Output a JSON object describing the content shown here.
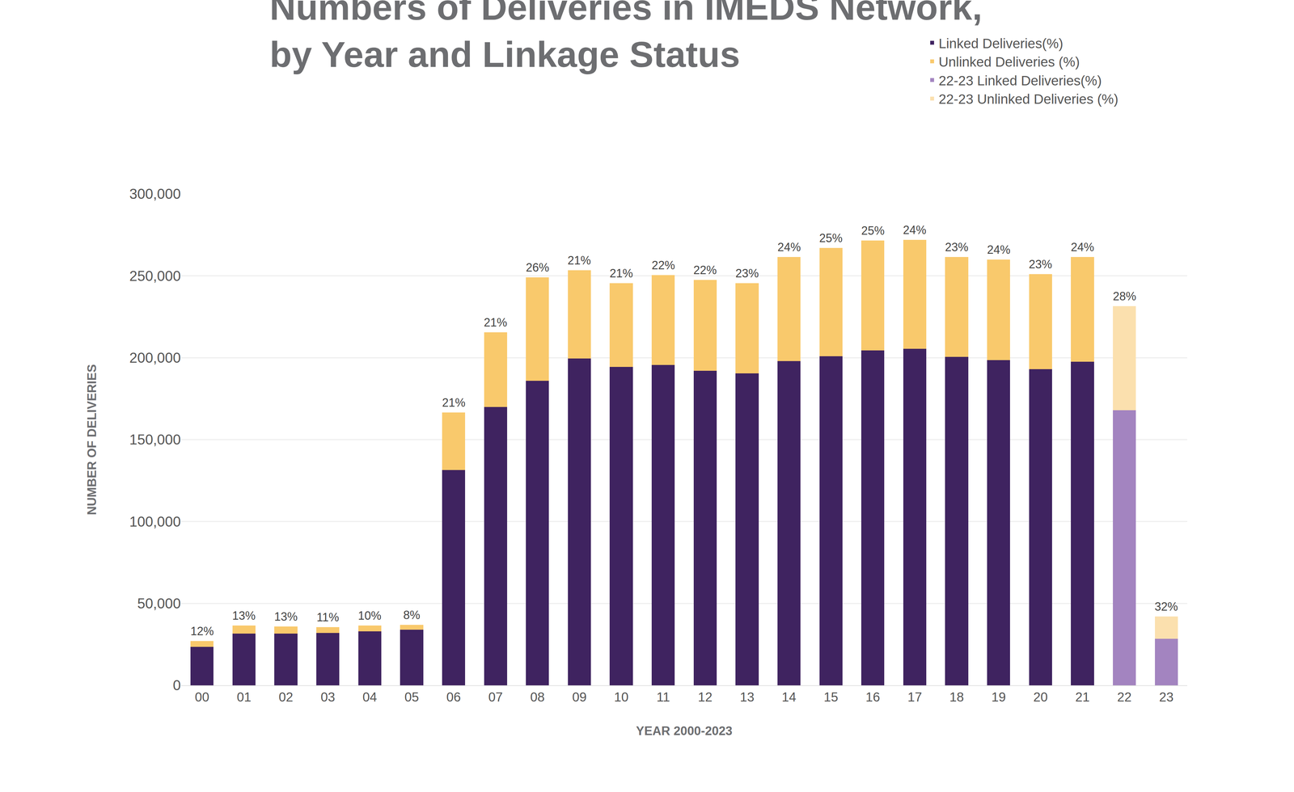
{
  "chart_data": {
    "type": "bar",
    "title": "Numbers of Deliveries in IMEDS Network, by Year and Linkage Status",
    "x_label": "YEAR 2000-2023",
    "y_label": "NUMBER OF DELIVERIES",
    "categories": [
      "00",
      "01",
      "02",
      "03",
      "04",
      "05",
      "06",
      "07",
      "08",
      "09",
      "10",
      "11",
      "12",
      "13",
      "14",
      "15",
      "16",
      "17",
      "18",
      "19",
      "20",
      "21",
      "22",
      "23"
    ],
    "series": [
      {
        "name": "Linked Deliveries(%)",
        "color": "#3f2360",
        "values": [
          23500,
          31500,
          31500,
          32000,
          33000,
          34000,
          131500,
          170000,
          186000,
          199500,
          194500,
          195500,
          192000,
          190500,
          198000,
          201000,
          204500,
          205500,
          200500,
          198500,
          193000,
          197500,
          null,
          null
        ]
      },
      {
        "name": "Unlinked Deliveries (%)",
        "color": "#f9c96c",
        "values": [
          3500,
          5000,
          4500,
          3500,
          3500,
          3000,
          35000,
          45500,
          63000,
          54000,
          51000,
          55000,
          55500,
          55000,
          63500,
          66000,
          67000,
          66500,
          61000,
          61500,
          58000,
          64000,
          null,
          null
        ]
      },
      {
        "name": "22-23 Linked Deliveries(%)",
        "color": "#a384c0",
        "values": [
          null,
          null,
          null,
          null,
          null,
          null,
          null,
          null,
          null,
          null,
          null,
          null,
          null,
          null,
          null,
          null,
          null,
          null,
          null,
          null,
          null,
          null,
          168000,
          28500
        ]
      },
      {
        "name": "22-23 Unlinked Deliveries (%)",
        "color": "#fbe0ae",
        "values": [
          null,
          null,
          null,
          null,
          null,
          null,
          null,
          null,
          null,
          null,
          null,
          null,
          null,
          null,
          null,
          null,
          null,
          null,
          null,
          null,
          null,
          null,
          63500,
          13500
        ]
      }
    ],
    "annotations": [
      {
        "category": "00",
        "text": "12%"
      },
      {
        "category": "01",
        "text": "13%"
      },
      {
        "category": "02",
        "text": "13%"
      },
      {
        "category": "03",
        "text": "11%"
      },
      {
        "category": "04",
        "text": "10%"
      },
      {
        "category": "05",
        "text": "8%"
      },
      {
        "category": "06",
        "text": "21%"
      },
      {
        "category": "07",
        "text": "21%"
      },
      {
        "category": "08",
        "text": "26%"
      },
      {
        "category": "09",
        "text": "21%"
      },
      {
        "category": "10",
        "text": "21%"
      },
      {
        "category": "11",
        "text": "22%"
      },
      {
        "category": "12",
        "text": "22%"
      },
      {
        "category": "13",
        "text": "23%"
      },
      {
        "category": "14",
        "text": "24%"
      },
      {
        "category": "15",
        "text": "25%"
      },
      {
        "category": "16",
        "text": "25%"
      },
      {
        "category": "17",
        "text": "24%"
      },
      {
        "category": "18",
        "text": "23%"
      },
      {
        "category": "19",
        "text": "24%"
      },
      {
        "category": "20",
        "text": "23%"
      },
      {
        "category": "21",
        "text": "24%"
      },
      {
        "category": "22",
        "text": "28%"
      },
      {
        "category": "23",
        "text": "32%"
      }
    ],
    "ylim": [
      0,
      300000
    ],
    "yticks": [
      0,
      {
        "value": 50000,
        "label": "50,000"
      },
      {
        "value": 100000,
        "label": "100,000"
      },
      {
        "value": 150000,
        "label": "150,000"
      },
      {
        "value": 200000,
        "label": "200,000"
      },
      {
        "value": 250000,
        "label": "250,000"
      },
      {
        "value": 300000,
        "label": "300,000"
      }
    ],
    "stacked": true,
    "grid": true,
    "legend": "top right"
  }
}
